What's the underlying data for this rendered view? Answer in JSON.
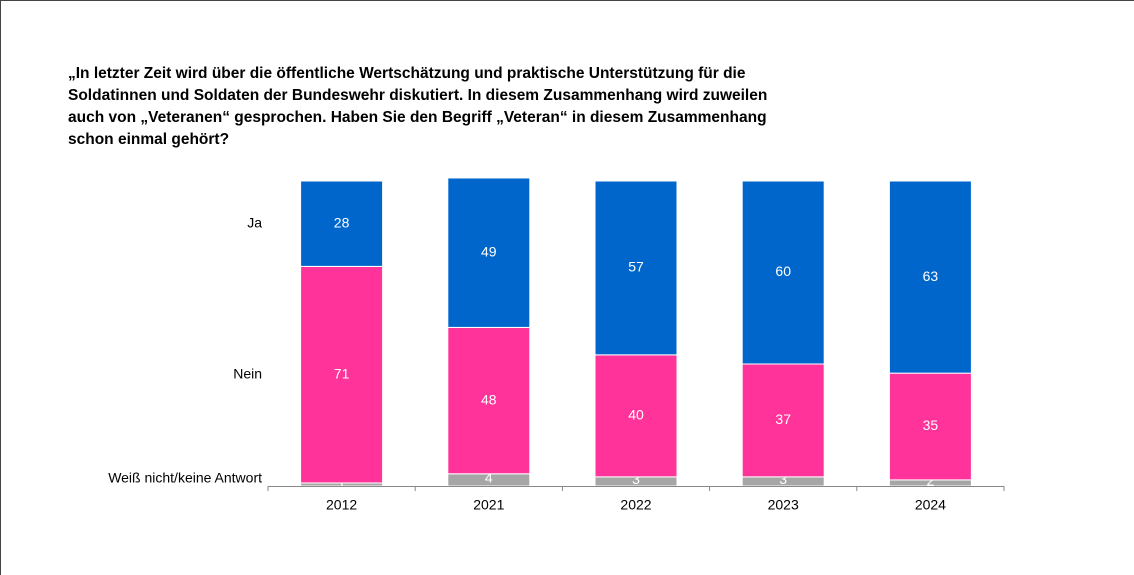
{
  "chart_data": {
    "type": "stacked_bar",
    "title": [
      "„In letzter Zeit wird über die öffentliche Wertschätzung und praktische Unterstützung für die",
      "Soldatinnen und Soldaten der Bundeswehr diskutiert. In diesem Zusammenhang wird zuweilen",
      "auch von „Veteranen“ gesprochen. Haben Sie den Begriff „Veteran“ in diesem Zusammenhang",
      "schon einmal gehört?"
    ],
    "categories": [
      "2012",
      "2021",
      "2022",
      "2023",
      "2024"
    ],
    "series": [
      {
        "name": "Weiß nicht/keine Antwort",
        "color": "#a6a6a6",
        "values": [
          1,
          4,
          3,
          3,
          2
        ]
      },
      {
        "name": "Nein",
        "color": "#ff3399",
        "values": [
          71,
          48,
          40,
          37,
          35
        ]
      },
      {
        "name": "Ja",
        "color": "#0066cc",
        "values": [
          28,
          49,
          57,
          60,
          63
        ]
      }
    ],
    "ylim": [
      0,
      100
    ]
  }
}
